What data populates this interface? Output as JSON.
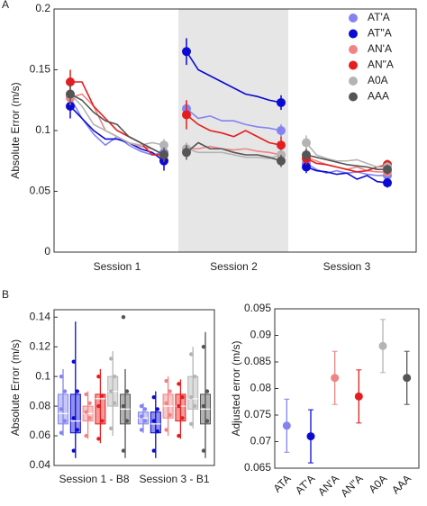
{
  "chart_data": [
    {
      "type": "line",
      "panel": "A",
      "ylabel": "Absolute Error (m/s)",
      "ylim": [
        0,
        0.2
      ],
      "yticks": [
        0,
        0.05,
        0.1,
        0.15,
        0.2
      ],
      "legend": "upper right",
      "categories": [
        "Session 1",
        "Session 2",
        "Session 3"
      ],
      "series": [
        {
          "name": "AT'A",
          "color": "#8484f0",
          "values": [
            [
              0.127,
              0.11,
              0.097,
              0.088,
              0.095,
              0.088,
              0.083,
              0.08,
              0.082
            ],
            [
              0.118,
              0.11,
              0.112,
              0.108,
              0.108,
              0.105,
              0.103,
              0.102,
              0.1
            ],
            [
              0.073,
              0.068,
              0.065,
              0.067,
              0.065,
              0.066,
              0.064,
              0.063,
              0.063
            ]
          ],
          "errors": [
            [
              0.006,
              null,
              null,
              null,
              null,
              null,
              null,
              null,
              0.005
            ],
            [
              0.006,
              null,
              null,
              null,
              null,
              null,
              null,
              null,
              0.005
            ],
            [
              0.005,
              null,
              null,
              null,
              null,
              null,
              null,
              null,
              0.004
            ]
          ]
        },
        {
          "name": "AT\"A",
          "color": "#0a0ad2",
          "values": [
            [
              0.12,
              0.11,
              0.1,
              0.093,
              0.093,
              0.09,
              0.085,
              0.082,
              0.075
            ],
            [
              0.165,
              0.15,
              0.145,
              0.14,
              0.135,
              0.13,
              0.128,
              0.125,
              0.123
            ],
            [
              0.07,
              0.067,
              0.066,
              0.064,
              0.065,
              0.06,
              0.063,
              0.058,
              0.057
            ]
          ],
          "errors": [
            [
              0.01,
              null,
              null,
              null,
              null,
              null,
              null,
              null,
              0.008
            ],
            [
              0.011,
              null,
              null,
              null,
              null,
              null,
              null,
              null,
              0.006
            ],
            [
              0.005,
              null,
              null,
              null,
              null,
              null,
              null,
              null,
              0.004
            ]
          ]
        },
        {
          "name": "AN'A",
          "color": "#f08484",
          "values": [
            [
              0.127,
              0.13,
              0.12,
              0.1,
              0.095,
              0.09,
              0.087,
              0.085,
              0.08
            ],
            [
              0.085,
              0.085,
              0.087,
              0.085,
              0.084,
              0.085,
              0.083,
              0.082,
              0.08
            ],
            [
              0.078,
              0.075,
              0.072,
              0.07,
              0.068,
              0.07,
              0.067,
              0.066,
              0.066
            ]
          ],
          "errors": [
            [
              0.006,
              null,
              null,
              null,
              null,
              null,
              null,
              null,
              0.005
            ],
            [
              0.005,
              null,
              null,
              null,
              null,
              null,
              null,
              null,
              0.005
            ],
            [
              0.005,
              null,
              null,
              null,
              null,
              null,
              null,
              null,
              0.004
            ]
          ]
        },
        {
          "name": "AN\"A",
          "color": "#e41e1e",
          "values": [
            [
              0.14,
              0.14,
              0.12,
              0.11,
              0.1,
              0.095,
              0.09,
              0.08,
              0.08
            ],
            [
              0.113,
              0.105,
              0.1,
              0.098,
              0.095,
              0.1,
              0.095,
              0.09,
              0.088
            ],
            [
              0.077,
              0.073,
              0.072,
              0.07,
              0.068,
              0.066,
              0.067,
              0.07,
              0.072
            ]
          ],
          "errors": [
            [
              0.01,
              null,
              null,
              null,
              null,
              null,
              null,
              null,
              0.006
            ],
            [
              0.012,
              null,
              null,
              null,
              null,
              null,
              null,
              null,
              0.007
            ],
            [
              0.005,
              null,
              null,
              null,
              null,
              null,
              null,
              null,
              0.004
            ]
          ]
        },
        {
          "name": "A0A",
          "color": "#b4b4b4",
          "values": [
            [
              0.13,
              0.12,
              0.105,
              0.1,
              0.095,
              0.09,
              0.088,
              0.09,
              0.088
            ],
            [
              0.085,
              0.082,
              0.082,
              0.082,
              0.08,
              0.078,
              0.078,
              0.077,
              0.08
            ],
            [
              0.09,
              0.08,
              0.077,
              0.075,
              0.075,
              0.076,
              0.073,
              0.07,
              0.07
            ]
          ],
          "errors": [
            [
              0.006,
              null,
              null,
              null,
              null,
              null,
              null,
              null,
              0.005
            ],
            [
              0.005,
              null,
              null,
              null,
              null,
              null,
              null,
              null,
              0.004
            ],
            [
              0.006,
              null,
              null,
              null,
              null,
              null,
              null,
              null,
              0.004
            ]
          ]
        },
        {
          "name": "AAA",
          "color": "#555555",
          "values": [
            [
              0.13,
              0.125,
              0.115,
              0.108,
              0.105,
              0.095,
              0.09,
              0.085,
              0.08
            ],
            [
              0.082,
              0.09,
              0.085,
              0.085,
              0.082,
              0.08,
              0.08,
              0.078,
              0.075
            ],
            [
              0.08,
              0.078,
              0.076,
              0.074,
              0.072,
              0.071,
              0.07,
              0.068,
              0.068
            ]
          ],
          "errors": [
            [
              0.008,
              null,
              null,
              null,
              null,
              null,
              null,
              null,
              0.006
            ],
            [
              0.006,
              null,
              null,
              null,
              null,
              null,
              null,
              null,
              0.005
            ],
            [
              0.005,
              null,
              null,
              null,
              null,
              null,
              null,
              null,
              0.004
            ]
          ]
        }
      ]
    },
    {
      "type": "box",
      "panel": "B",
      "ylabel": "Absolute Error (m/s)",
      "ylim": [
        0.04,
        0.145
      ],
      "yticks": [
        0.04,
        0.06,
        0.08,
        0.1,
        0.12,
        0.14
      ],
      "categories": [
        "Session 1 - B8",
        "Session 3 - B1"
      ],
      "series": [
        {
          "name": "AT'A",
          "color": "#8484f0",
          "boxes": [
            {
              "whisker_low": 0.06,
              "q1": 0.068,
              "median": 0.075,
              "q3": 0.088,
              "whisker_high": 0.105,
              "points": [
                0.062,
                0.07,
                0.078,
                0.09,
                0.1
              ]
            },
            {
              "whisker_low": 0.062,
              "q1": 0.068,
              "median": 0.072,
              "q3": 0.076,
              "whisker_high": 0.082,
              "points": [
                0.064,
                0.07,
                0.073,
                0.078,
                0.08
              ]
            }
          ]
        },
        {
          "name": "AT\"A",
          "color": "#0a0ad2",
          "boxes": [
            {
              "whisker_low": 0.045,
              "q1": 0.062,
              "median": 0.07,
              "q3": 0.088,
              "whisker_high": 0.137,
              "points": [
                0.05,
                0.064,
                0.072,
                0.09,
                0.11
              ]
            },
            {
              "whisker_low": 0.045,
              "q1": 0.062,
              "median": 0.068,
              "q3": 0.076,
              "whisker_high": 0.09,
              "points": [
                0.05,
                0.063,
                0.07,
                0.078,
                0.086
              ]
            }
          ]
        },
        {
          "name": "AN'A",
          "color": "#f08484",
          "boxes": [
            {
              "whisker_low": 0.058,
              "q1": 0.07,
              "median": 0.075,
              "q3": 0.08,
              "whisker_high": 0.09,
              "points": [
                0.06,
                0.072,
                0.076,
                0.082,
                0.088
              ]
            },
            {
              "whisker_low": 0.06,
              "q1": 0.072,
              "median": 0.08,
              "q3": 0.088,
              "whisker_high": 0.1,
              "points": [
                0.064,
                0.074,
                0.082,
                0.09,
                0.097
              ]
            }
          ]
        },
        {
          "name": "AN\"A",
          "color": "#e41e1e",
          "boxes": [
            {
              "whisker_low": 0.055,
              "q1": 0.068,
              "median": 0.085,
              "q3": 0.088,
              "whisker_high": 0.105,
              "points": [
                0.058,
                0.07,
                0.08,
                0.087,
                0.1
              ]
            },
            {
              "whisker_low": 0.058,
              "q1": 0.07,
              "median": 0.08,
              "q3": 0.088,
              "whisker_high": 0.098,
              "points": [
                0.06,
                0.072,
                0.08,
                0.086,
                0.095
              ]
            }
          ]
        },
        {
          "name": "A0A",
          "color": "#b4b4b4",
          "boxes": [
            {
              "whisker_low": 0.06,
              "q1": 0.08,
              "median": 0.09,
              "q3": 0.1,
              "whisker_high": 0.117,
              "points": [
                0.065,
                0.082,
                0.09,
                0.1,
                0.112
              ]
            },
            {
              "whisker_low": 0.065,
              "q1": 0.078,
              "median": 0.085,
              "q3": 0.1,
              "whisker_high": 0.12,
              "points": [
                0.068,
                0.08,
                0.086,
                0.1,
                0.115
              ]
            }
          ]
        },
        {
          "name": "AAA",
          "color": "#555555",
          "boxes": [
            {
              "whisker_low": 0.045,
              "q1": 0.068,
              "median": 0.078,
              "q3": 0.088,
              "whisker_high": 0.105,
              "points": [
                0.05,
                0.07,
                0.08,
                0.09,
                0.14
              ]
            },
            {
              "whisker_low": 0.045,
              "q1": 0.068,
              "median": 0.078,
              "q3": 0.088,
              "whisker_high": 0.13,
              "points": [
                0.05,
                0.07,
                0.08,
                0.09,
                0.12
              ]
            }
          ]
        }
      ]
    },
    {
      "type": "errorbar",
      "ylabel": "Adjusted error (m/s)",
      "ylim": [
        0.065,
        0.095
      ],
      "yticks": [
        0.065,
        0.07,
        0.075,
        0.08,
        0.085,
        0.09,
        0.095
      ],
      "categories": [
        "ATA",
        "AT'A",
        "AN'A",
        "AN\"A",
        "A0A",
        "AAA"
      ],
      "values": [
        0.073,
        0.071,
        0.082,
        0.0785,
        0.088,
        0.082
      ],
      "errors": [
        0.005,
        0.005,
        0.005,
        0.005,
        0.005,
        0.005
      ],
      "colors": [
        "#8484f0",
        "#0a0ad2",
        "#f08484",
        "#e41e1e",
        "#b4b4b4",
        "#555555"
      ]
    }
  ]
}
